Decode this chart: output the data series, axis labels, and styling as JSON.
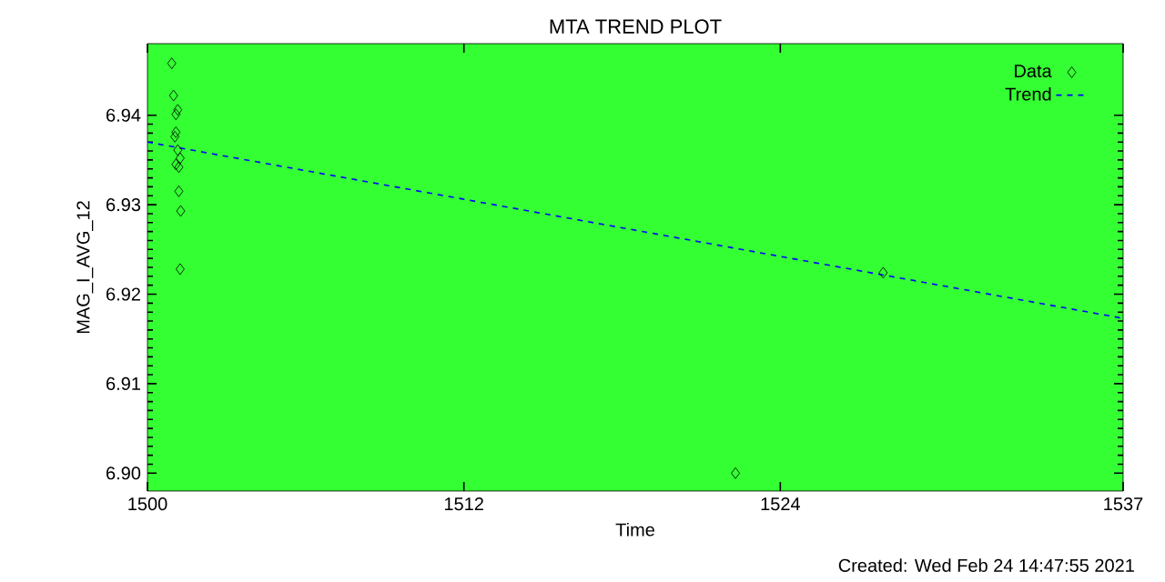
{
  "chart_data": {
    "type": "scatter",
    "title": "MTA TREND PLOT",
    "xlabel": "Time",
    "ylabel": "MAG_I_AVG_12",
    "xlim": [
      1500,
      1537
    ],
    "ylim": [
      6.898,
      6.948
    ],
    "xticks": [
      1500,
      1512,
      1524,
      1537
    ],
    "yticks": [
      {
        "value": 6.9,
        "label": "6.90"
      },
      {
        "value": 6.91,
        "label": "6.91"
      },
      {
        "value": 6.92,
        "label": "6.92"
      },
      {
        "value": 6.93,
        "label": "6.93"
      },
      {
        "value": 6.94,
        "label": "6.94"
      }
    ],
    "series": [
      {
        "name": "Data",
        "color": "#000000",
        "marker": "diamond",
        "x": [
          1500.92,
          1500.99,
          1501.08,
          1501.15,
          1501.08,
          1501.04,
          1501.15,
          1501.24,
          1501.08,
          1501.19,
          1501.19,
          1501.26,
          1501.24,
          1527.9,
          1522.3
        ],
        "values": [
          6.9458,
          6.9422,
          6.9401,
          6.9406,
          6.9381,
          6.9376,
          6.9361,
          6.9352,
          6.9345,
          6.9342,
          6.9315,
          6.9293,
          6.9228,
          6.9224,
          6.9
        ]
      },
      {
        "name": "Trend",
        "type": "line",
        "color": "#0000ff",
        "line_style": "dashed",
        "x": [
          1500,
          1537
        ],
        "values": [
          6.937,
          6.9173
        ]
      }
    ],
    "legend": "top right",
    "annotations": [
      "Created: Wed Feb 24 14:47:55 2021"
    ]
  }
}
